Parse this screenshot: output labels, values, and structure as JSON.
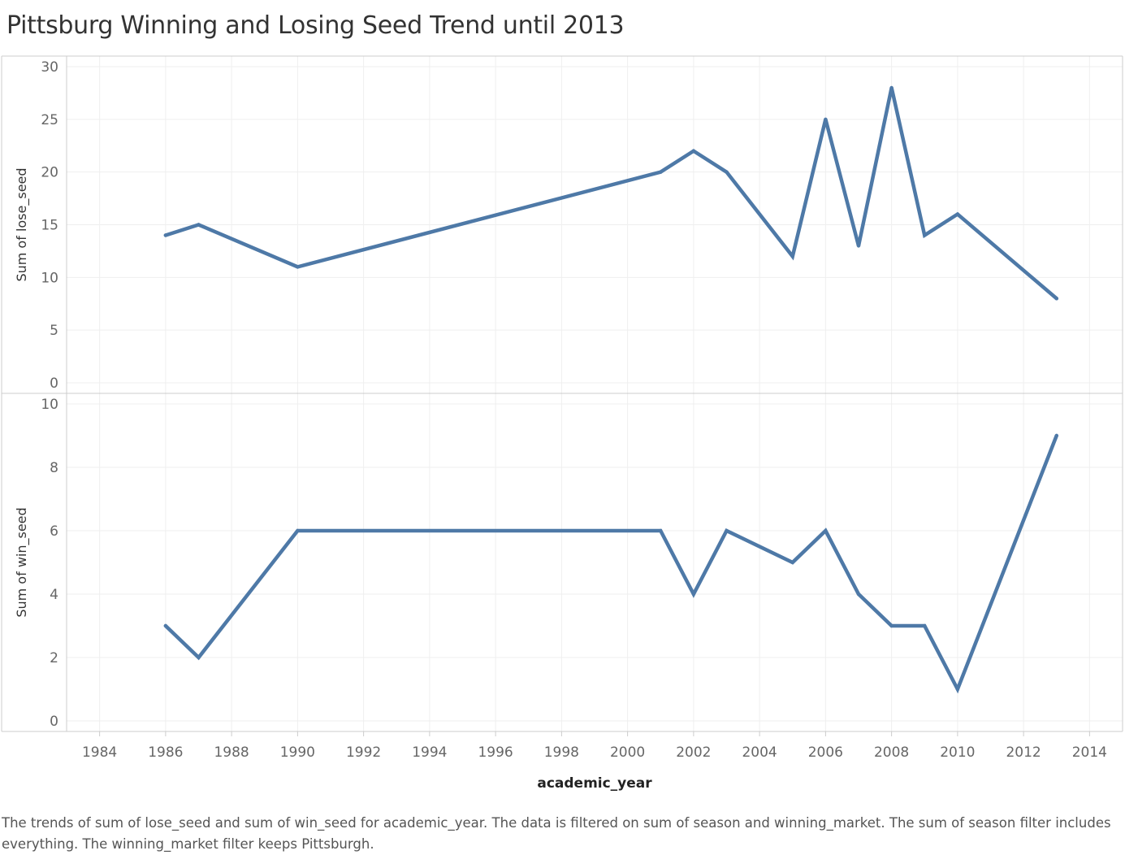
{
  "title": "Pittsburg Winning and Losing Seed Trend until 2013",
  "caption": "The trends of sum of lose_seed and sum of win_seed for academic_year. The data is filtered on sum of season and winning_market. The sum of season filter includes everything. The winning_market filter keeps Pittsburgh.",
  "colors": {
    "line": "#4e79a7",
    "grid": "#efefef",
    "axis": "#cccccc"
  },
  "chart_data": [
    {
      "type": "line",
      "xlabel": "academic_year",
      "ylabel": "Sum of lose_seed",
      "xlim": [
        1983,
        2015
      ],
      "x_ticks": [
        1984,
        1986,
        1988,
        1990,
        1992,
        1994,
        1996,
        1998,
        2000,
        2002,
        2004,
        2006,
        2008,
        2010,
        2012,
        2014
      ],
      "ylim": [
        0,
        30
      ],
      "y_ticks": [
        0,
        5,
        10,
        15,
        20,
        25,
        30
      ],
      "grid": true,
      "x": [
        1986,
        1987,
        1990,
        2001,
        2002,
        2003,
        2005,
        2006,
        2007,
        2008,
        2009,
        2010,
        2013
      ],
      "y": [
        14,
        15,
        11,
        20,
        22,
        20,
        12,
        25,
        13,
        28,
        14,
        16,
        8
      ]
    },
    {
      "type": "line",
      "xlabel": "academic_year",
      "ylabel": "Sum of win_seed",
      "xlim": [
        1983,
        2015
      ],
      "x_ticks": [
        1984,
        1986,
        1988,
        1990,
        1992,
        1994,
        1996,
        1998,
        2000,
        2002,
        2004,
        2006,
        2008,
        2010,
        2012,
        2014
      ],
      "ylim": [
        0,
        10
      ],
      "y_ticks": [
        0,
        2,
        4,
        6,
        8,
        10
      ],
      "grid": true,
      "x": [
        1986,
        1987,
        1990,
        2001,
        2002,
        2003,
        2005,
        2006,
        2007,
        2008,
        2009,
        2010,
        2013
      ],
      "y": [
        3,
        2,
        6,
        6,
        4,
        6,
        5,
        6,
        4,
        3,
        3,
        1,
        9
      ]
    }
  ]
}
